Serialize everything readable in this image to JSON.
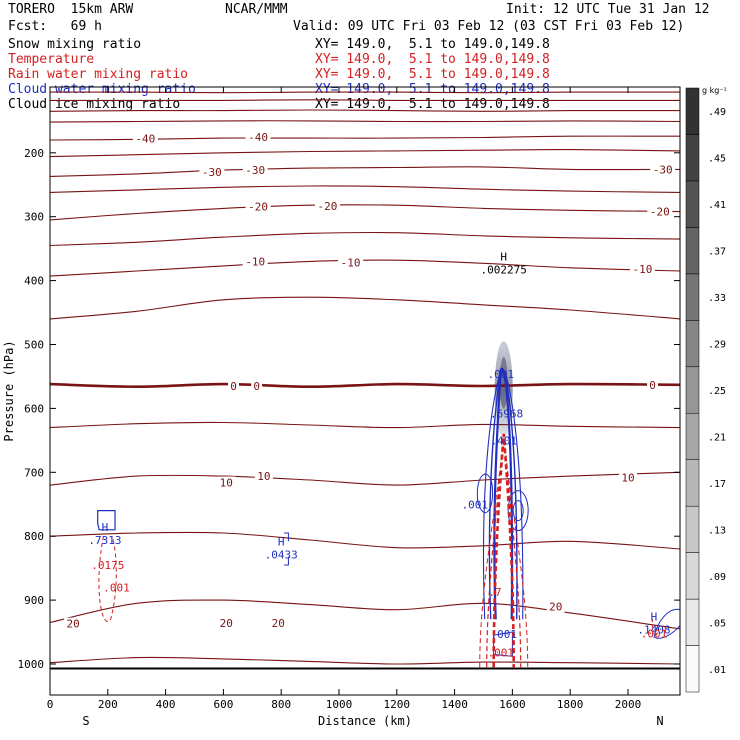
{
  "header": {
    "model": "TORERO  15km ARW",
    "org": "NCAR/MMM",
    "init": "Init: 12 UTC Tue 31 Jan 12",
    "fcst": "Fcst:   69 h",
    "valid": "Valid: 09 UTC Fri 03 Feb 12 (03 CST Fri 03 Feb 12)"
  },
  "legend": [
    {
      "label": "Snow mixing ratio",
      "xy": "XY= 149.0,  5.1 to 149.0,149.8",
      "color": "#000000"
    },
    {
      "label": "Temperature",
      "xy": "XY= 149.0,  5.1 to 149.0,149.8",
      "color": "#d42020"
    },
    {
      "label": "Rain water mixing ratio",
      "xy": "XY= 149.0,  5.1 to 149.0,149.8",
      "color": "#d42020"
    },
    {
      "label": "Cloud water mixing ratio",
      "xy": "XY= 149.0,  5.1 to 149.0,149.8",
      "color": "#1f2fc0"
    },
    {
      "label": "Cloud ice mixing ratio",
      "xy": "XY= 149.0,  5.1 to 149.0,149.8",
      "color": "#000000"
    }
  ],
  "colors": {
    "temperature": "#7a1414",
    "rain": "#d42020",
    "cloud_water": "#1f2fc0",
    "axis": "#000000"
  },
  "chart_data": {
    "type": "cross-section",
    "xlabel": "Distance (km)",
    "ylabel": "Pressure (hPa)",
    "xlim": [
      0,
      2180
    ],
    "ylim": [
      1030,
      100
    ],
    "x_ticks": [
      0,
      200,
      400,
      600,
      800,
      1000,
      1200,
      1400,
      1600,
      1800,
      2000
    ],
    "y_ticks": [
      200,
      300,
      400,
      500,
      600,
      700,
      800,
      900,
      1000
    ],
    "endpoints": {
      "left": "S",
      "right": "N"
    },
    "colorbar": {
      "unit": "g kg⁻¹",
      "ticks": [
        ".01",
        ".05",
        ".09",
        ".13",
        ".17",
        ".21",
        ".25",
        ".29",
        ".33",
        ".37",
        ".41",
        ".45",
        ".49"
      ]
    },
    "temperature_isotherms": [
      {
        "t": -50,
        "p": [
          105,
          105,
          106,
          105,
          105,
          106,
          105,
          105
        ]
      },
      {
        "t": -50,
        "p": [
          118,
          118,
          118,
          117,
          118,
          118,
          118,
          118
        ]
      },
      {
        "t": -50,
        "p": [
          135,
          134,
          134,
          133,
          134,
          135,
          134,
          134
        ]
      },
      {
        "t": -45,
        "p": [
          152,
          151,
          150,
          150,
          151,
          151,
          150,
          151
        ]
      },
      {
        "t": -40,
        "p": [
          180,
          179,
          177,
          177,
          177,
          176,
          174,
          174
        ]
      },
      {
        "t": -35,
        "p": [
          206,
          203,
          200,
          198,
          197,
          196,
          195,
          197
        ]
      },
      {
        "t": -30,
        "p": [
          237,
          233,
          227,
          224,
          223,
          222,
          226,
          226
        ]
      },
      {
        "t": -25,
        "p": [
          262,
          258,
          254,
          252,
          253,
          257,
          260,
          262
        ]
      },
      {
        "t": -20,
        "p": [
          305,
          295,
          287,
          282,
          282,
          287,
          290,
          292
        ]
      },
      {
        "t": -15,
        "p": [
          345,
          340,
          332,
          326,
          325,
          330,
          333,
          335
        ]
      },
      {
        "t": -10,
        "p": [
          393,
          385,
          377,
          370,
          368,
          373,
          380,
          385
        ]
      },
      {
        "t": -5,
        "p": [
          460,
          448,
          430,
          426,
          430,
          438,
          446,
          460
        ]
      },
      {
        "t": 0,
        "p": [
          562,
          566,
          562,
          566,
          562,
          565,
          562,
          563
        ]
      },
      {
        "t": 5,
        "p": [
          630,
          624,
          622,
          626,
          630,
          625,
          628,
          630
        ]
      },
      {
        "t": 10,
        "p": [
          720,
          706,
          706,
          712,
          720,
          712,
          706,
          700
        ]
      },
      {
        "t": 15,
        "p": [
          800,
          795,
          795,
          806,
          818,
          815,
          808,
          820
        ]
      },
      {
        "t": 20,
        "p": [
          935,
          905,
          900,
          907,
          915,
          905,
          920,
          945
        ]
      },
      {
        "t": 25,
        "p": [
          998,
          990,
          992,
          996,
          1000,
          997,
          998,
          1000
        ]
      }
    ],
    "isotherm_x": [
      0,
      300,
      600,
      900,
      1200,
      1500,
      1800,
      2180
    ],
    "temperature_labels": [
      {
        "text": "-40",
        "x": 330,
        "p": 178
      },
      {
        "text": "-40",
        "x": 720,
        "p": 175
      },
      {
        "text": "-30",
        "x": 560,
        "p": 230
      },
      {
        "text": "-30",
        "x": 710,
        "p": 227
      },
      {
        "text": "-30",
        "x": 2120,
        "p": 226
      },
      {
        "text": "-20",
        "x": 720,
        "p": 284
      },
      {
        "text": "-20",
        "x": 960,
        "p": 283
      },
      {
        "text": "-20",
        "x": 2110,
        "p": 292
      },
      {
        "text": "-10",
        "x": 710,
        "p": 370
      },
      {
        "text": "-10",
        "x": 1040,
        "p": 372
      },
      {
        "text": "-10",
        "x": 2050,
        "p": 382
      },
      {
        "text": "0",
        "x": 635,
        "p": 565
      },
      {
        "text": "0",
        "x": 715,
        "p": 565
      },
      {
        "text": "0",
        "x": 2085,
        "p": 563
      },
      {
        "text": "10",
        "x": 610,
        "p": 716
      },
      {
        "text": "10",
        "x": 740,
        "p": 706
      },
      {
        "text": "10",
        "x": 2000,
        "p": 708
      },
      {
        "text": "20",
        "x": 80,
        "p": 937
      },
      {
        "text": "20",
        "x": 610,
        "p": 936
      },
      {
        "text": "20",
        "x": 790,
        "p": 936
      },
      {
        "text": "20",
        "x": 1750,
        "p": 910
      }
    ],
    "maxima_labels": [
      {
        "mark": "H",
        "value": ".002275",
        "x": 1570,
        "p": 372,
        "color": "#000000"
      },
      {
        "mark": "H",
        "value": ".7313",
        "x": 190,
        "p": 795,
        "color": "#1f2fc0"
      },
      {
        "mark": "H",
        "value": ".0433",
        "x": 800,
        "p": 818,
        "color": "#1f2fc0"
      },
      {
        "mark": "H",
        "value": ".1408",
        "x": 2090,
        "p": 935,
        "color": "#1f2fc0"
      }
    ],
    "contour_labels": [
      {
        "text": ".001",
        "x": 1560,
        "p": 546,
        "color": "#1f2fc0"
      },
      {
        "text": ".6968",
        "x": 1580,
        "p": 608,
        "color": "#1f2fc0"
      },
      {
        "text": ".001",
        "x": 1470,
        "p": 750,
        "color": "#1f2fc0"
      },
      {
        "text": ".0175",
        "x": 200,
        "p": 845,
        "color": "#d42020"
      },
      {
        "text": ".001",
        "x": 230,
        "p": 880,
        "color": "#d42020"
      },
      {
        "text": ".001",
        "x": 1560,
        "p": 982,
        "color": "#d42020"
      },
      {
        "text": ".001",
        "x": 1570,
        "p": 953,
        "color": "#1f2fc0"
      },
      {
        "text": ".001",
        "x": 2090,
        "p": 952,
        "color": "#d42020"
      },
      {
        "text": ".401",
        "x": 1570,
        "p": 650,
        "color": "#1f2fc0"
      },
      {
        "text": ".7",
        "x": 1540,
        "p": 887,
        "color": "#d42020"
      }
    ]
  }
}
